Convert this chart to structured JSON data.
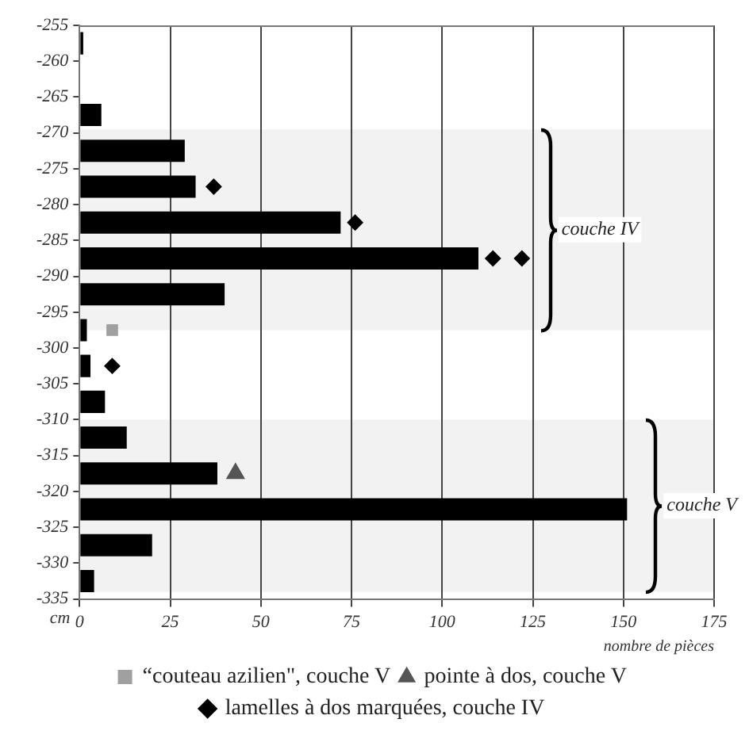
{
  "chart_data": {
    "type": "bar",
    "orientation": "horizontal",
    "xlabel": "nombre de pièces",
    "ylabel": "cm",
    "xlim": [
      0,
      175
    ],
    "xticks": [
      0,
      25,
      50,
      75,
      100,
      125,
      150,
      175
    ],
    "ylim": [
      -335,
      -255
    ],
    "yticks": [
      -255,
      -260,
      -265,
      -270,
      -275,
      -280,
      -285,
      -290,
      -295,
      -300,
      -305,
      -310,
      -315,
      -320,
      -325,
      -330,
      -335
    ],
    "grid": "x",
    "legend": "bottom",
    "series": [
      {
        "color": "#000000",
        "x": [
          -257.5,
          -267.5,
          -272.5,
          -277.5,
          -282.5,
          -287.5,
          -292.5,
          -297.5,
          -302.5,
          -307.5,
          -312.5,
          -317.5,
          -322.5,
          -327.5,
          -332.5
        ],
        "values": [
          1,
          6,
          29,
          32,
          72,
          110,
          40,
          2,
          3,
          7,
          13,
          38,
          151,
          20,
          4
        ]
      },
      {
        "type": "scatter",
        "name": "“couteau azilien\", couche V",
        "color": "#a0a0a0",
        "marker": "square",
        "x": [
          -297.5
        ],
        "values": [
          9
        ]
      },
      {
        "type": "scatter",
        "name": "pointe à dos, couche V",
        "color": "#555555",
        "marker": "triangle",
        "x": [
          -317.5
        ],
        "values": [
          43
        ]
      },
      {
        "type": "scatter",
        "name": "lamelles à dos marquées, couche IV",
        "color": "#000000",
        "marker": "diamond",
        "x": [
          -277.5,
          -282.5,
          -287.5,
          -287.5,
          -302.5
        ],
        "values": [
          37,
          76,
          114,
          122,
          9
        ]
      }
    ],
    "bands": [
      {
        "axis": "y",
        "from": -269.5,
        "to": -297.5,
        "label": "couche IV",
        "color": "#f2f2f2"
      },
      {
        "axis": "y",
        "from": -310,
        "to": -334,
        "label": "couche V",
        "color": "#f2f2f2"
      }
    ]
  }
}
